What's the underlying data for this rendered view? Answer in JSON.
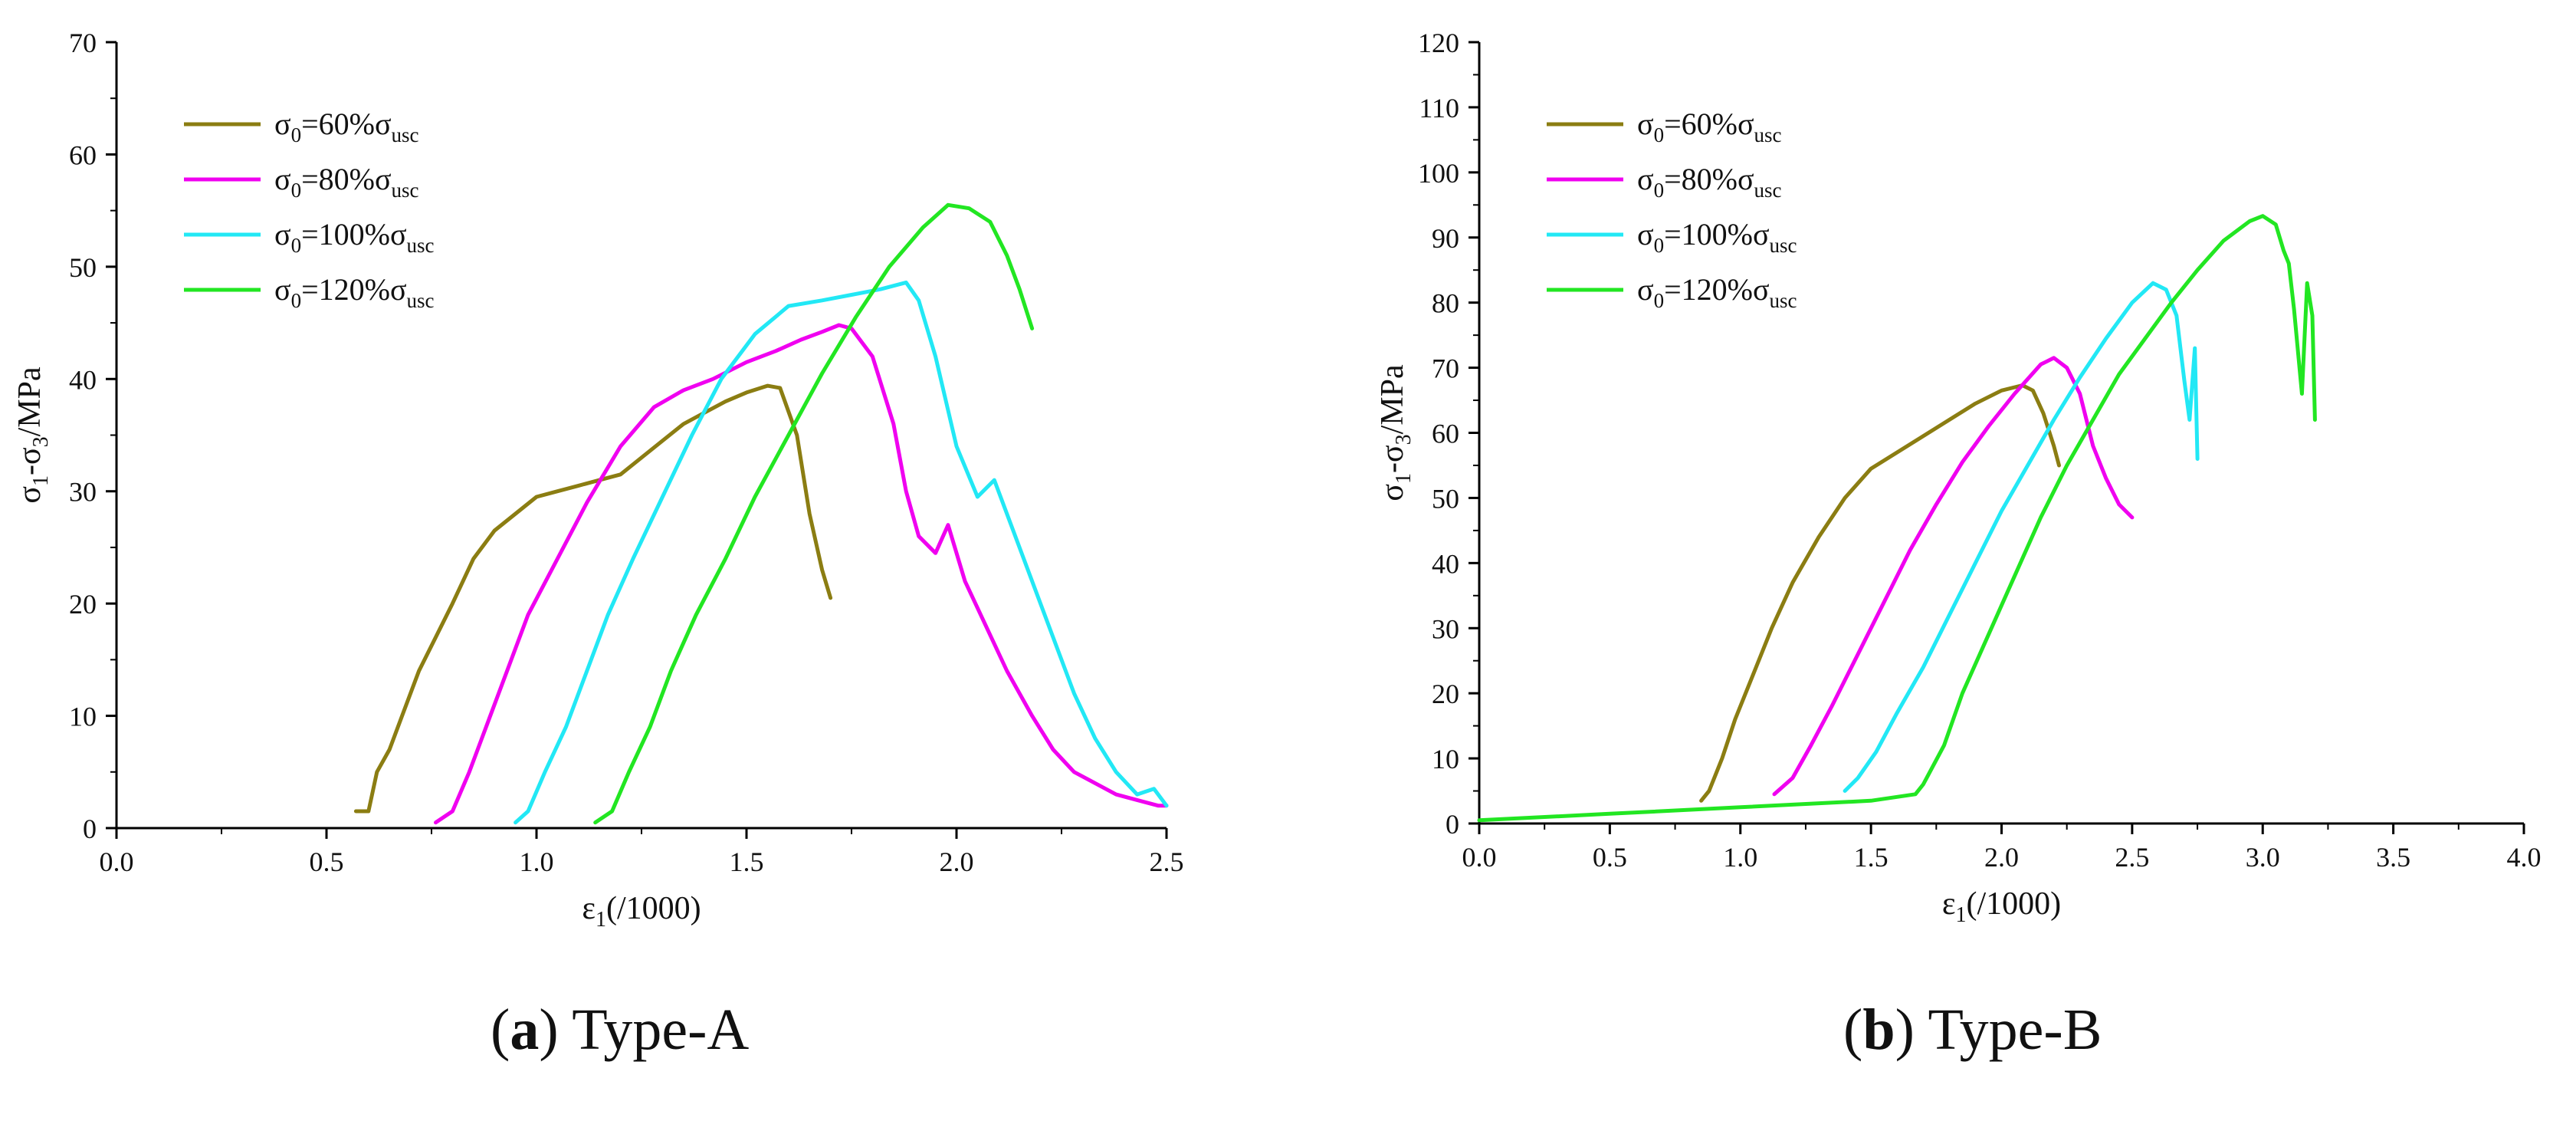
{
  "chart_data": [
    {
      "type": "line",
      "panel": "a",
      "caption_letter": "a",
      "caption_text": "Type-A",
      "xlabel": {
        "main": "ε",
        "sub": "1",
        "tail": "(/1000)"
      },
      "ylabel": {
        "p1": "σ",
        "s1": "1",
        "p2": "-σ",
        "s2": "3",
        "p3": "/MPa"
      },
      "xlim": [
        0,
        2.5
      ],
      "ylim": [
        0,
        70
      ],
      "xticks": [
        "0.0",
        "0.5",
        "1.0",
        "1.5",
        "2.0",
        "2.5"
      ],
      "yticks": [
        "0",
        "10",
        "20",
        "30",
        "40",
        "50",
        "60",
        "70"
      ],
      "legend_position": "top-left",
      "series": [
        {
          "name": "σ0=60%σusc",
          "label_main": "σ",
          "label_sub": "0",
          "label_mid": "=60%σ",
          "label_sub2": "usc",
          "color": "#8B7D12",
          "x": [
            0.57,
            0.6,
            0.62,
            0.65,
            0.68,
            0.72,
            0.76,
            0.8,
            0.85,
            0.9,
            0.95,
            1.0,
            1.05,
            1.1,
            1.15,
            1.2,
            1.25,
            1.3,
            1.35,
            1.4,
            1.45,
            1.5,
            1.55,
            1.58,
            1.62,
            1.65,
            1.68,
            1.7
          ],
          "y": [
            1.5,
            1.5,
            5,
            7,
            10,
            14,
            17,
            20,
            24,
            26.5,
            28,
            29.5,
            30,
            30.5,
            31,
            31.5,
            33,
            34.5,
            36,
            37,
            38,
            38.8,
            39.4,
            39.2,
            35,
            28,
            23,
            20.5
          ]
        },
        {
          "name": "σ0=80%σusc",
          "label_main": "σ",
          "label_sub": "0",
          "label_mid": "=80%σ",
          "label_sub2": "usc",
          "color": "#F000F0",
          "x": [
            0.76,
            0.8,
            0.84,
            0.88,
            0.93,
            0.98,
            1.05,
            1.12,
            1.2,
            1.28,
            1.35,
            1.42,
            1.5,
            1.57,
            1.63,
            1.68,
            1.72,
            1.75,
            1.8,
            1.85,
            1.88,
            1.91,
            1.95,
            1.98,
            2.02,
            2.07,
            2.12,
            2.18,
            2.23,
            2.28,
            2.33,
            2.38,
            2.43,
            2.48,
            2.5
          ],
          "y": [
            0.5,
            1.5,
            5,
            9,
            14,
            19,
            24,
            29,
            34,
            37.5,
            39,
            40,
            41.5,
            42.5,
            43.5,
            44.2,
            44.8,
            44.5,
            42,
            36,
            30,
            26,
            24.5,
            27,
            22,
            18,
            14,
            10,
            7,
            5,
            4,
            3,
            2.5,
            2,
            2
          ]
        },
        {
          "name": "σ0=100%σusc",
          "label_main": "σ",
          "label_sub": "0",
          "label_mid": "=100%σ",
          "label_sub2": "usc",
          "color": "#22E8F5",
          "x": [
            0.95,
            0.98,
            1.02,
            1.07,
            1.12,
            1.17,
            1.23,
            1.3,
            1.37,
            1.44,
            1.52,
            1.6,
            1.68,
            1.75,
            1.82,
            1.88,
            1.91,
            1.95,
            2.0,
            2.05,
            2.09,
            2.13,
            2.18,
            2.23,
            2.28,
            2.33,
            2.38,
            2.43,
            2.47,
            2.5
          ],
          "y": [
            0.5,
            1.5,
            5,
            9,
            14,
            19,
            24,
            29.5,
            35,
            40,
            44,
            46.5,
            47,
            47.5,
            48,
            48.6,
            47,
            42,
            34,
            29.5,
            31,
            27,
            22,
            17,
            12,
            8,
            5,
            3,
            3.5,
            2
          ]
        },
        {
          "name": "σ0=120%σusc",
          "label_main": "σ",
          "label_sub": "0",
          "label_mid": "=120%σ",
          "label_sub2": "usc",
          "color": "#22E622",
          "x": [
            1.14,
            1.18,
            1.22,
            1.27,
            1.32,
            1.38,
            1.45,
            1.52,
            1.6,
            1.68,
            1.76,
            1.84,
            1.92,
            1.98,
            2.03,
            2.08,
            2.12,
            2.15,
            2.18
          ],
          "y": [
            0.5,
            1.5,
            5,
            9,
            14,
            19,
            24,
            29.5,
            35,
            40.5,
            45.5,
            50,
            53.5,
            55.5,
            55.2,
            54,
            51,
            48,
            44.5
          ]
        }
      ]
    },
    {
      "type": "line",
      "panel": "b",
      "caption_letter": "b",
      "caption_text": "Type-B",
      "xlabel": {
        "main": "ε",
        "sub": "1",
        "tail": "(/1000)"
      },
      "ylabel": {
        "p1": "σ",
        "s1": "1",
        "p2": "-σ",
        "s2": "3",
        "p3": "/MPa"
      },
      "xlim": [
        0,
        4.0
      ],
      "ylim": [
        0,
        120
      ],
      "xticks": [
        "0.0",
        "0.5",
        "1.0",
        "1.5",
        "2.0",
        "2.5",
        "3.0",
        "3.5",
        "4.0"
      ],
      "yticks": [
        "0",
        "10",
        "20",
        "30",
        "40",
        "50",
        "60",
        "70",
        "80",
        "90",
        "100",
        "110",
        "120"
      ],
      "legend_position": "top-left",
      "series": [
        {
          "name": "σ0=60%σusc",
          "label_main": "σ",
          "label_sub": "0",
          "label_mid": "=60%σ",
          "label_sub2": "usc",
          "color": "#8B7D12",
          "x": [
            0.85,
            0.88,
            0.93,
            0.98,
            1.05,
            1.12,
            1.2,
            1.3,
            1.4,
            1.5,
            1.6,
            1.7,
            1.8,
            1.9,
            2.0,
            2.08,
            2.12,
            2.16,
            2.2,
            2.22
          ],
          "y": [
            3.5,
            5,
            10,
            16,
            23,
            30,
            37,
            44,
            50,
            54.5,
            57,
            59.5,
            62,
            64.5,
            66.5,
            67.3,
            66.5,
            63,
            58,
            55
          ]
        },
        {
          "name": "σ0=80%σusc",
          "label_main": "σ",
          "label_sub": "0",
          "label_mid": "=80%σ",
          "label_sub2": "usc",
          "color": "#F000F0",
          "x": [
            1.13,
            1.2,
            1.27,
            1.35,
            1.45,
            1.55,
            1.65,
            1.75,
            1.85,
            1.95,
            2.05,
            2.15,
            2.2,
            2.25,
            2.3,
            2.35,
            2.4,
            2.45,
            2.5
          ],
          "y": [
            4.5,
            7,
            12,
            18,
            26,
            34,
            42,
            49,
            55.5,
            61,
            66,
            70.5,
            71.5,
            70,
            66,
            58,
            53,
            49,
            47
          ]
        },
        {
          "name": "σ0=100%σusc",
          "label_main": "σ",
          "label_sub": "0",
          "label_mid": "=100%σ",
          "label_sub2": "usc",
          "color": "#22E8F5",
          "x": [
            1.4,
            1.45,
            1.52,
            1.6,
            1.7,
            1.8,
            1.9,
            2.0,
            2.1,
            2.2,
            2.3,
            2.4,
            2.5,
            2.58,
            2.63,
            2.67,
            2.7,
            2.72,
            2.74,
            2.75
          ],
          "y": [
            5,
            7,
            11,
            17,
            24,
            32,
            40,
            48,
            55,
            62,
            68.5,
            74.5,
            80,
            83,
            82,
            78,
            68,
            62,
            73,
            56
          ]
        },
        {
          "name": "σ0=120%σusc",
          "label_main": "σ",
          "label_sub": "0",
          "label_mid": "=120%σ",
          "label_sub2": "usc",
          "color": "#22E622",
          "x": [
            0.0,
            0.5,
            1.0,
            1.5,
            1.67,
            1.7,
            1.78,
            1.85,
            1.95,
            2.05,
            2.15,
            2.25,
            2.35,
            2.45,
            2.55,
            2.65,
            2.75,
            2.85,
            2.95,
            3.0,
            3.05,
            3.08,
            3.1,
            3.12,
            3.15,
            3.17,
            3.19,
            3.2
          ],
          "y": [
            0.5,
            1.5,
            2.5,
            3.5,
            4.5,
            6,
            12,
            20,
            29,
            38,
            47,
            55,
            62,
            69,
            74.5,
            80,
            85,
            89.5,
            92.5,
            93.3,
            92,
            88,
            86,
            79,
            66,
            83,
            78,
            62
          ]
        }
      ]
    }
  ]
}
